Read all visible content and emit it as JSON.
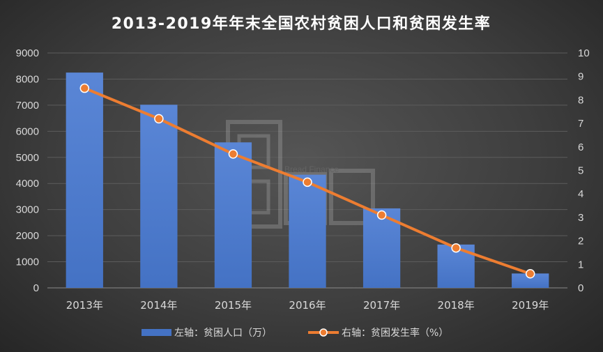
{
  "chart_data": {
    "type": "bar+line",
    "title": "2013-2019年年末全国农村贫困人口和贫困发生率",
    "categories": [
      "2013年",
      "2014年",
      "2015年",
      "2016年",
      "2017年",
      "2018年",
      "2019年"
    ],
    "series": [
      {
        "name": "左轴：贫困人口（万）",
        "type": "bar",
        "axis": "left",
        "color": "#4472c4",
        "values": [
          8249,
          7017,
          5575,
          4335,
          3046,
          1660,
          551
        ]
      },
      {
        "name": "右轴：贫困发生率（%）",
        "type": "line",
        "axis": "right",
        "color": "#ed7d31",
        "values": [
          8.5,
          7.2,
          5.7,
          4.5,
          3.1,
          1.7,
          0.6
        ]
      }
    ],
    "y_left": {
      "min": 0,
      "max": 9000,
      "ticks": [
        0,
        1000,
        2000,
        3000,
        4000,
        5000,
        6000,
        7000,
        8000,
        9000
      ]
    },
    "y_right": {
      "min": 0,
      "max": 10,
      "ticks": [
        0,
        1,
        2,
        3,
        4,
        5,
        6,
        7,
        8,
        9,
        10
      ]
    },
    "grid": true,
    "legend_position": "bottom"
  },
  "watermark": {
    "text": "Bread Finance"
  }
}
